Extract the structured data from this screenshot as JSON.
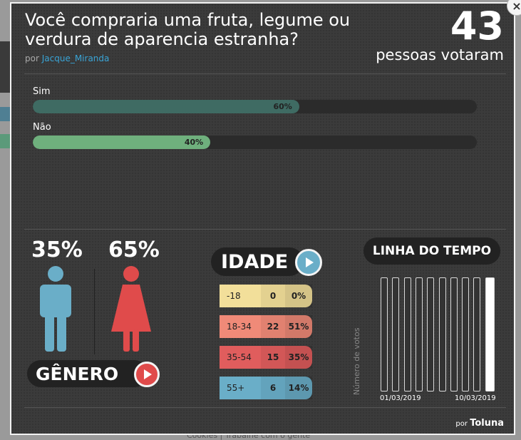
{
  "background": {
    "bottom_text": "Cookies | Trabalhe com o gente"
  },
  "poll": {
    "question": "Você compraria uma fruta, legume ou verdura de aparencia estranha?",
    "by_prefix": "por",
    "author": "Jacque_Miranda",
    "votes_count": "43",
    "votes_label": "pessoas votaram",
    "options": [
      {
        "label": "Sim",
        "percent_text": "60%",
        "percent": 60,
        "color": "#3f6b63"
      },
      {
        "label": "Não",
        "percent_text": "40%",
        "percent": 40,
        "color": "#6fb07d"
      }
    ]
  },
  "gender": {
    "male_pct": "35%",
    "female_pct": "65%",
    "label": "GÊNERO",
    "male_color": "#6aaec8",
    "female_color": "#e04b4b"
  },
  "age": {
    "label": "IDADE",
    "rows": [
      {
        "range": "-18",
        "count": "0",
        "pct": "0%",
        "color": "#f2df9a"
      },
      {
        "range": "18-34",
        "count": "22",
        "pct": "51%",
        "color": "#f08a78"
      },
      {
        "range": "35-54",
        "count": "15",
        "pct": "35%",
        "color": "#e05d5d"
      },
      {
        "range": "55+",
        "count": "6",
        "pct": "14%",
        "color": "#6aaec8"
      }
    ]
  },
  "timeline": {
    "label": "LINHA DO TEMPO",
    "ylabel": "Número de votos",
    "start_date": "01/03/2019",
    "end_date": "10/03/2019",
    "bars": 10,
    "highlight_index": 9
  },
  "brand": {
    "prefix": "por",
    "name": "Toluna"
  }
}
